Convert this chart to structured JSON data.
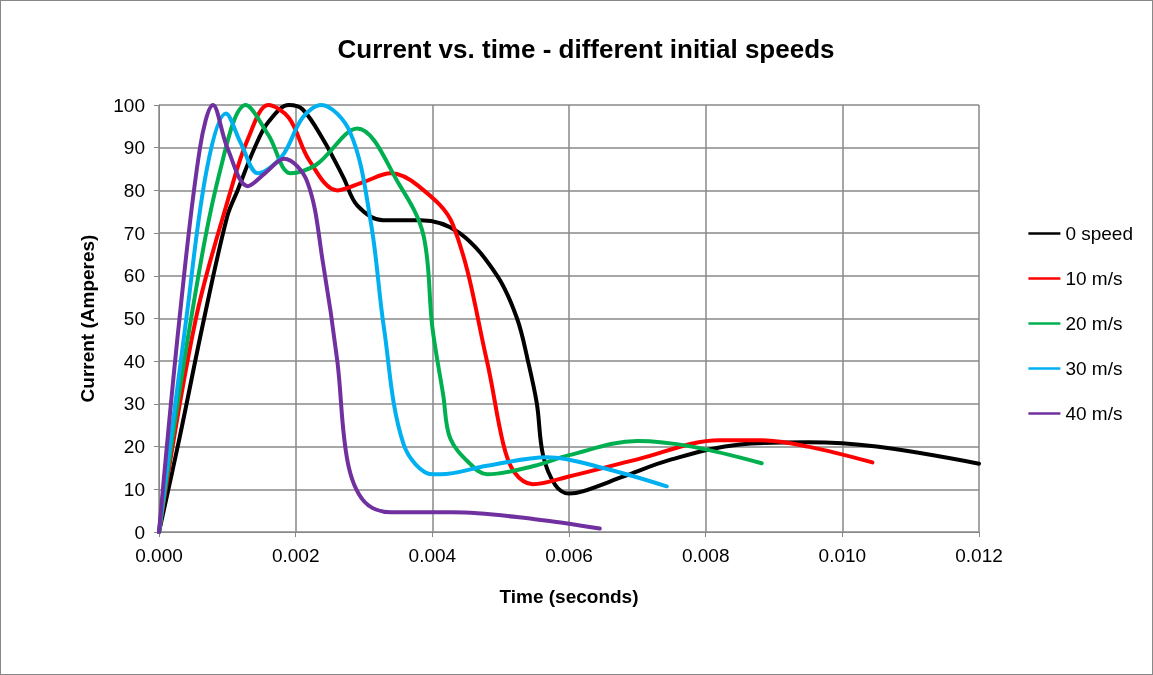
{
  "chart_data": {
    "type": "line",
    "title": "Current vs. time - different initial speeds",
    "xlabel": "Time (seconds)",
    "ylabel": "Current (Amperes)",
    "xlim": [
      0,
      0.012
    ],
    "xticks": [
      {
        "value": 0,
        "label": "0.000"
      },
      {
        "value": 0.002,
        "label": "0.002"
      },
      {
        "value": 0.004,
        "label": "0.004"
      },
      {
        "value": 0.006,
        "label": "0.006"
      },
      {
        "value": 0.008,
        "label": "0.008"
      },
      {
        "value": 0.01,
        "label": "0.010"
      },
      {
        "value": 0.012,
        "label": "0.012"
      }
    ],
    "ylim": [
      0,
      100
    ],
    "yticks": [
      0,
      10,
      20,
      30,
      40,
      50,
      60,
      70,
      80,
      90,
      100
    ],
    "grid": true,
    "legend": "right",
    "marker": "none",
    "line_style": "solid",
    "series": [
      {
        "name": "0 speed",
        "color": "#000000",
        "x": [
          0,
          0.0003,
          0.00066,
          0.001,
          0.00115,
          0.0014,
          0.0016,
          0.0019,
          0.0021,
          0.0024,
          0.0027,
          0.0029,
          0.00328,
          0.00383,
          0.0044,
          0.00495,
          0.00524,
          0.0054,
          0.00553,
          0.00562,
          0.0058,
          0.006,
          0.0062,
          0.0068,
          0.0075,
          0.0085,
          0.0095,
          0.0105,
          0.012
        ],
        "values": [
          0,
          22,
          50,
          74,
          80,
          90,
          96,
          100,
          99,
          92,
          83,
          76.5,
          73,
          73,
          70,
          60,
          50,
          40,
          30,
          18,
          11,
          9,
          9.5,
          13,
          17,
          20.5,
          21,
          20,
          16
        ]
      },
      {
        "name": "10 m/s",
        "color": "#ff0000",
        "x": [
          0,
          0.00054,
          0.00105,
          0.0013,
          0.0016,
          0.0019,
          0.0022,
          0.00261,
          0.003,
          0.00339,
          0.0038,
          0.0043,
          0.0048,
          0.00504,
          0.0052,
          0.00547,
          0.006,
          0.007,
          0.0082,
          0.0088,
          0.0095,
          0.01044
        ],
        "values": [
          0,
          50,
          80,
          92,
          100,
          97,
          87,
          80,
          82,
          84,
          81,
          72,
          40,
          20.5,
          14,
          11.2,
          13,
          17,
          21.5,
          21.5,
          20,
          16.3
        ]
      },
      {
        "name": "20 m/s",
        "color": "#00b050",
        "x": [
          0,
          0.00047,
          0.0009,
          0.00127,
          0.0016,
          0.00193,
          0.0023,
          0.0029,
          0.00353,
          0.00387,
          0.004,
          0.00416,
          0.00426,
          0.00455,
          0.0048,
          0.0055,
          0.006,
          0.007,
          0.0078,
          0.00882
        ],
        "values": [
          0,
          50,
          85,
          100,
          93,
          84,
          86,
          94.5,
          81,
          69.5,
          48,
          32,
          22,
          16,
          13.5,
          15.5,
          18,
          21.3,
          20,
          16.1
        ]
      },
      {
        "name": "30 m/s",
        "color": "#00b0f0",
        "x": [
          0,
          0.0004,
          0.0007,
          0.00098,
          0.0012,
          0.00145,
          0.0018,
          0.0021,
          0.00237,
          0.0028,
          0.0031,
          0.00329,
          0.00358,
          0.004,
          0.00412,
          0.0048,
          0.00568,
          0.0065,
          0.00743
        ],
        "values": [
          0,
          50,
          85,
          98,
          91,
          84,
          88,
          97,
          100,
          93.5,
          72.5,
          48,
          20.5,
          13.5,
          13.5,
          15.5,
          17.5,
          15,
          10.7
        ]
      },
      {
        "name": "40 m/s",
        "color": "#7030a0",
        "x": [
          0,
          0.0003,
          0.0006,
          0.00079,
          0.001,
          0.0013,
          0.00155,
          0.00183,
          0.00217,
          0.0024,
          0.00261,
          0.00276,
          0.003,
          0.00339,
          0.0043,
          0.0055,
          0.00645
        ],
        "values": [
          0,
          50,
          90,
          100,
          90,
          81,
          84,
          87.4,
          82,
          63,
          40,
          16.5,
          7.2,
          4.6,
          4.6,
          3,
          0.8
        ]
      }
    ]
  }
}
